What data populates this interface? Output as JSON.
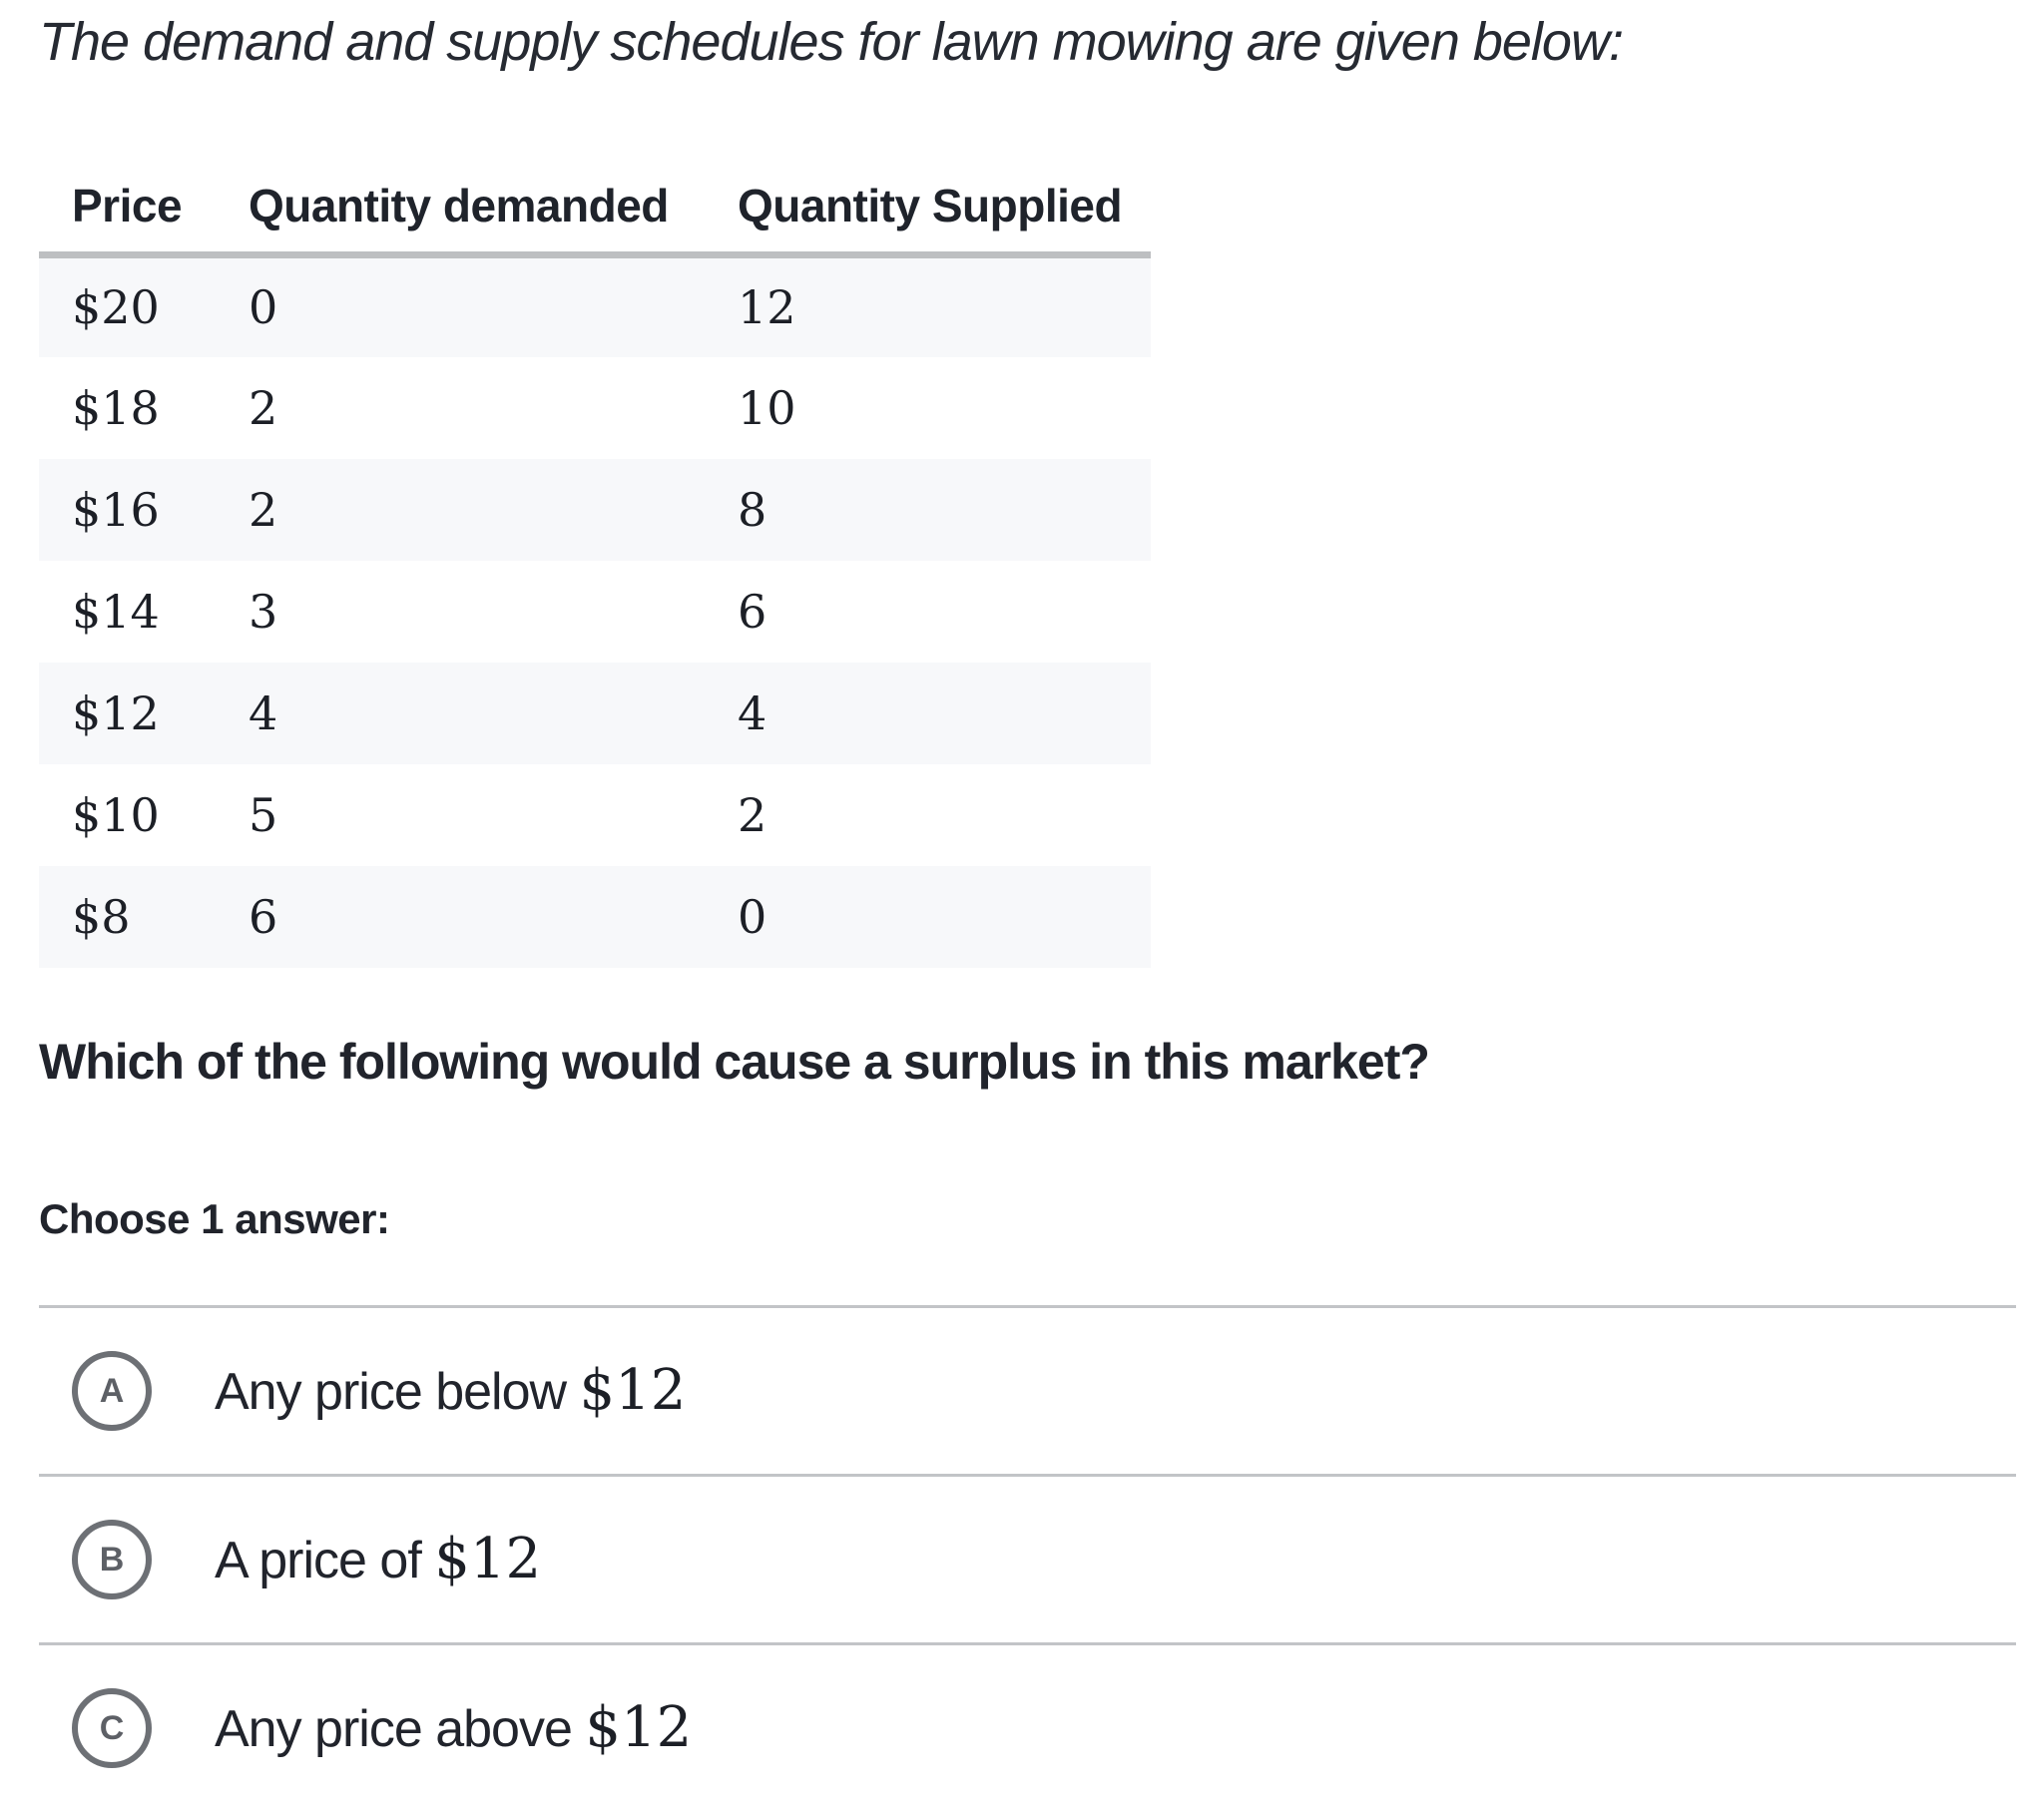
{
  "intro": "The demand and supply schedules for lawn mowing are given below:",
  "table": {
    "columns": [
      "Price",
      "Quantity demanded",
      "Quantity Supplied"
    ],
    "rows": [
      {
        "price": "$20",
        "quantity_demanded": "0",
        "quantity_supplied": "12"
      },
      {
        "price": "$18",
        "quantity_demanded": "2",
        "quantity_supplied": "10"
      },
      {
        "price": "$16",
        "quantity_demanded": "2",
        "quantity_supplied": "8"
      },
      {
        "price": "$14",
        "quantity_demanded": "3",
        "quantity_supplied": "6"
      },
      {
        "price": "$12",
        "quantity_demanded": "4",
        "quantity_supplied": "4"
      },
      {
        "price": "$10",
        "quantity_demanded": "5",
        "quantity_supplied": "2"
      },
      {
        "price": "$8",
        "quantity_demanded": "6",
        "quantity_supplied": "0"
      }
    ]
  },
  "question": "Which of the following would cause a surplus in this market?",
  "choose_label": "Choose 1 answer:",
  "options": [
    {
      "letter": "A",
      "text": "Any price below ",
      "math": "$12"
    },
    {
      "letter": "B",
      "text": "A price of ",
      "math": "$12"
    },
    {
      "letter": "C",
      "text": "Any price above ",
      "math": "$12"
    }
  ],
  "colors": {
    "text": "#22252d",
    "table_stripe": "#f7f8fa",
    "table_header_border": "#bdbfc1",
    "option_divider": "#c2c4c7",
    "radio_border": "#6d7075",
    "radio_letter": "#5d6066"
  }
}
